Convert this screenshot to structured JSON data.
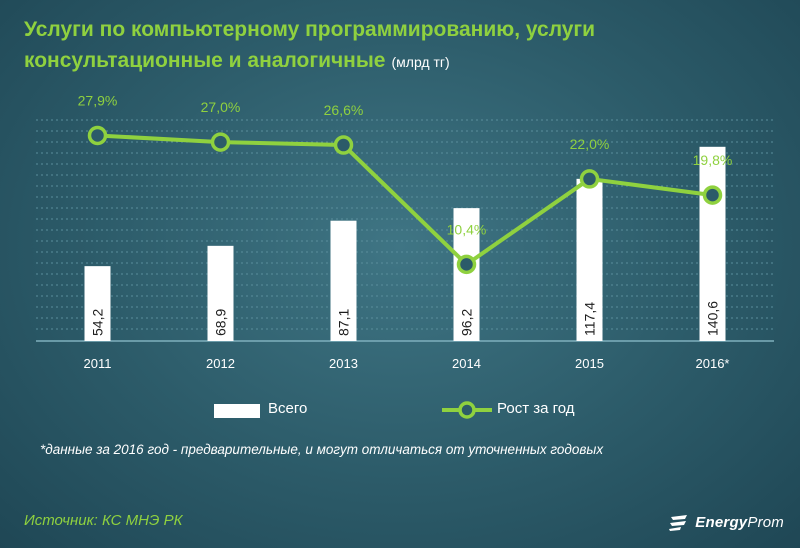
{
  "header": {
    "title": "Услуги по компьютерному программированию, услуги консультационные и аналогичные",
    "unit": "(млрд тг)"
  },
  "chart_data": {
    "type": "bar",
    "categories": [
      "2011",
      "2012",
      "2013",
      "2014",
      "2015",
      "2016*"
    ],
    "series": [
      {
        "name": "Всего",
        "type": "bar",
        "values": [
          54.2,
          68.9,
          87.1,
          96.2,
          117.4,
          140.6
        ],
        "labels": [
          "54,2",
          "68,9",
          "87,1",
          "96,2",
          "117,4",
          "140,6"
        ]
      },
      {
        "name": "Рост за год",
        "type": "line",
        "values": [
          27.9,
          27.0,
          26.6,
          10.4,
          22.0,
          19.8
        ],
        "labels": [
          "27,9%",
          "27,0%",
          "26,6%",
          "10,4%",
          "22,0%",
          "19,8%"
        ]
      }
    ],
    "bar_ylim": [
      0,
      160
    ],
    "line_ylim": [
      0,
      30
    ],
    "grid": true,
    "legend": "bottom"
  },
  "legend": {
    "bars_label": "Всего",
    "line_label": "Рост за год"
  },
  "footnote": "*данные за 2016 год - предварительные, и могут отличаться от уточненных годовых",
  "source": "Источник: КС МНЭ РК",
  "logo": {
    "part1": "Energy",
    "part2": "Prom"
  },
  "colors": {
    "accent": "#8fd13f",
    "bar": "#ffffff",
    "grid": "#5a8e9c"
  }
}
